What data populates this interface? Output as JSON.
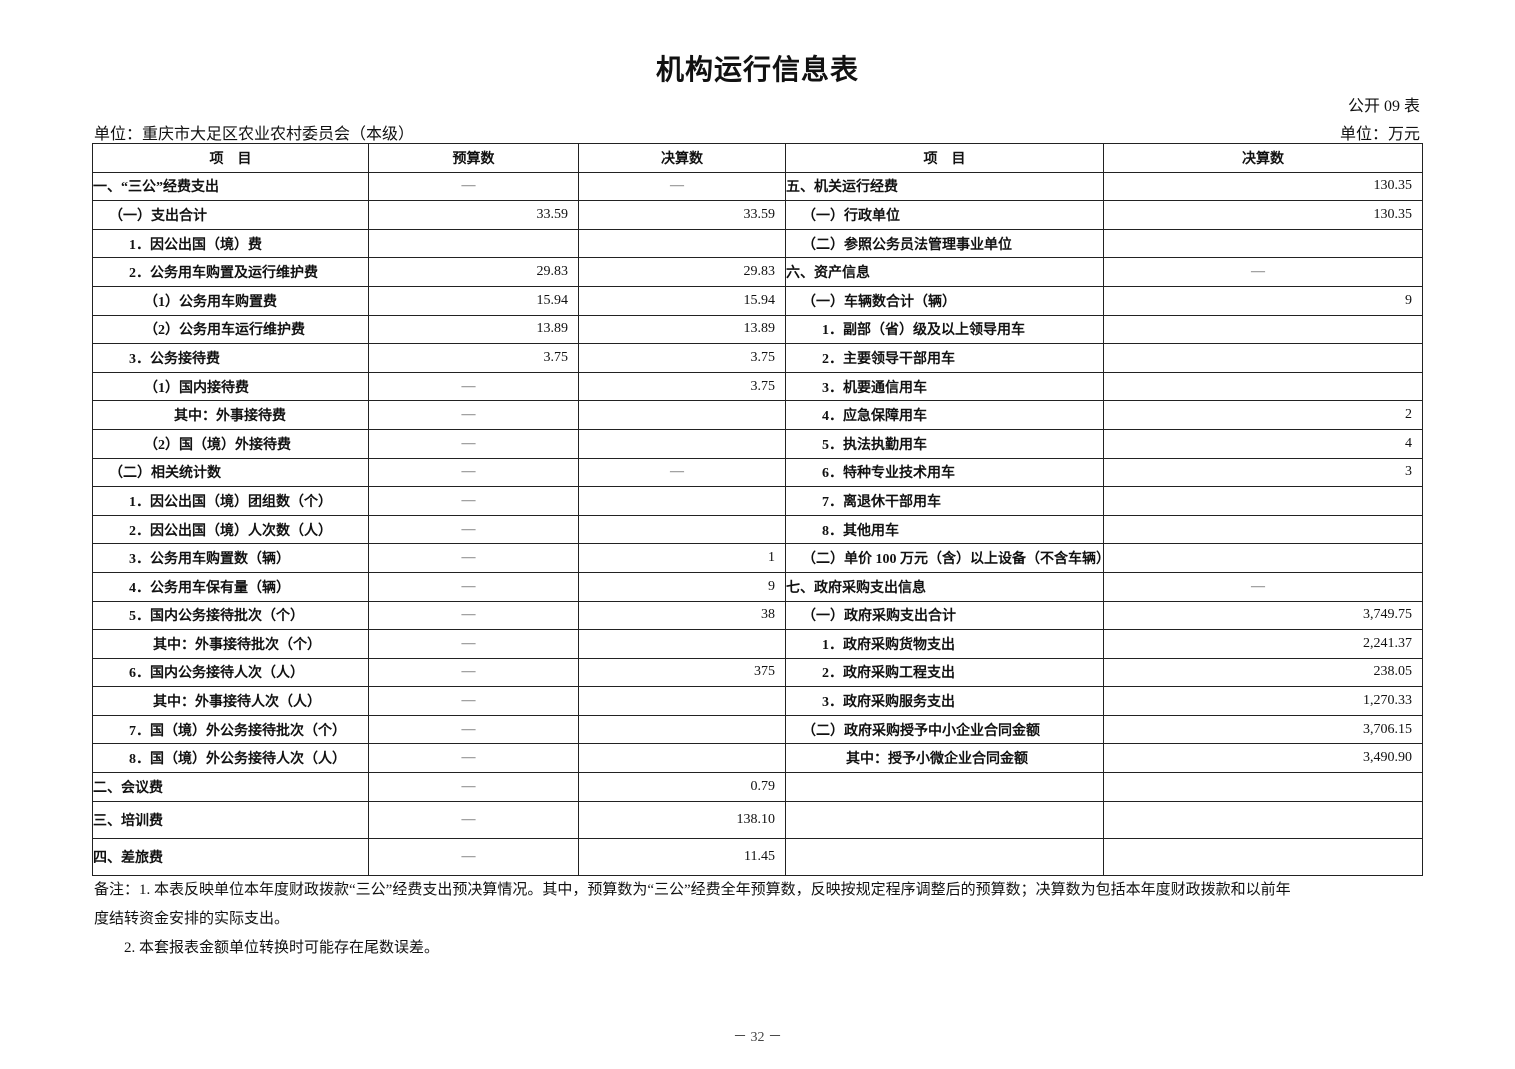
{
  "title": "机构运行信息表",
  "form_no": "公开 09 表",
  "unit_left": "单位：重庆市大足区农业农村委员会（本级）",
  "unit_right": "单位：万元",
  "headers": {
    "item": "项　目",
    "budget": "预算数",
    "final": "决算数",
    "item2": "项　目",
    "final2": "决算数"
  },
  "rows": [
    {
      "l": "一、“三公”经费支出",
      "li": 0,
      "b": "—",
      "f": "—",
      "r": "五、机关运行经费",
      "ri": 0,
      "v": "130.35"
    },
    {
      "l": "（一）支出合计",
      "li": 1,
      "b": "33.59",
      "f": "33.59",
      "r": "（一）行政单位",
      "ri": 1,
      "v": "130.35"
    },
    {
      "l": "1．因公出国（境）费",
      "li": 2,
      "b": "",
      "f": "",
      "r": "（二）参照公务员法管理事业单位",
      "ri": 1,
      "v": ""
    },
    {
      "l": "2．公务用车购置及运行维护费",
      "li": 2,
      "b": "29.83",
      "f": "29.83",
      "r": "六、资产信息",
      "ri": 0,
      "v": "—"
    },
    {
      "l": "（1）公务用车购置费",
      "li": 3,
      "b": "15.94",
      "f": "15.94",
      "r": "（一）车辆数合计（辆）",
      "ri": 1,
      "v": "9"
    },
    {
      "l": "（2）公务用车运行维护费",
      "li": 3,
      "b": "13.89",
      "f": "13.89",
      "r": "1．副部（省）级及以上领导用车",
      "ri": 2,
      "v": ""
    },
    {
      "l": "3．公务接待费",
      "li": 2,
      "b": "3.75",
      "f": "3.75",
      "r": "2．主要领导干部用车",
      "ri": 2,
      "v": ""
    },
    {
      "l": "（1）国内接待费",
      "li": 3,
      "b": "—",
      "f": "3.75",
      "r": "3．机要通信用车",
      "ri": 2,
      "v": ""
    },
    {
      "l": "其中：外事接待费",
      "li": 4,
      "b": "—",
      "f": "",
      "r": "4．应急保障用车",
      "ri": 2,
      "v": "2"
    },
    {
      "l": "（2）国（境）外接待费",
      "li": 3,
      "b": "—",
      "f": "",
      "r": "5．执法执勤用车",
      "ri": 2,
      "v": "4"
    },
    {
      "l": "（二）相关统计数",
      "li": 1,
      "b": "—",
      "f": "—",
      "r": "6．特种专业技术用车",
      "ri": 2,
      "v": "3"
    },
    {
      "l": "1．因公出国（境）团组数（个）",
      "li": 2,
      "b": "—",
      "f": "",
      "r": "7．离退休干部用车",
      "ri": 2,
      "v": ""
    },
    {
      "l": "2．因公出国（境）人次数（人）",
      "li": 2,
      "b": "—",
      "f": "",
      "r": "8．其他用车",
      "ri": 2,
      "v": ""
    },
    {
      "l": "3．公务用车购置数（辆）",
      "li": 2,
      "b": "—",
      "f": "1",
      "r": "（二）单价 100 万元（含）以上设备（不含车辆）",
      "ri": 1,
      "v": ""
    },
    {
      "l": "4．公务用车保有量（辆）",
      "li": 2,
      "b": "—",
      "f": "9",
      "r": "七、政府采购支出信息",
      "ri": 0,
      "v": "—"
    },
    {
      "l": "5．国内公务接待批次（个）",
      "li": 2,
      "b": "—",
      "f": "38",
      "r": "（一）政府采购支出合计",
      "ri": 1,
      "v": "3,749.75"
    },
    {
      "l": "其中：外事接待批次（个）",
      "li": 5,
      "b": "—",
      "f": "",
      "r": "1．政府采购货物支出",
      "ri": 2,
      "v": "2,241.37"
    },
    {
      "l": "6．国内公务接待人次（人）",
      "li": 2,
      "b": "—",
      "f": "375",
      "r": "2．政府采购工程支出",
      "ri": 2,
      "v": "238.05"
    },
    {
      "l": "其中：外事接待人次（人）",
      "li": 5,
      "b": "—",
      "f": "",
      "r": "3．政府采购服务支出",
      "ri": 2,
      "v": "1,270.33"
    },
    {
      "l": "7．国（境）外公务接待批次（个）",
      "li": 2,
      "b": "—",
      "f": "",
      "r": "（二）政府采购授予中小企业合同金额",
      "ri": 1,
      "v": "3,706.15"
    },
    {
      "l": "8．国（境）外公务接待人次（人）",
      "li": 2,
      "b": "—",
      "f": "",
      "r": "其中：授予小微企业合同金额",
      "ri": 6,
      "v": "3,490.90"
    },
    {
      "l": "二、会议费",
      "li": 0,
      "b": "—",
      "f": "0.79",
      "r": "",
      "ri": 0,
      "v": ""
    },
    {
      "l": "三、培训费",
      "li": 0,
      "b": "—",
      "f": "138.10",
      "r": "",
      "ri": 0,
      "v": ""
    },
    {
      "l": "四、差旅费",
      "li": 0,
      "b": "—",
      "f": "11.45",
      "r": "",
      "ri": 0,
      "v": ""
    }
  ],
  "notes": [
    "备注：1. 本表反映单位本年度财政拨款“三公”经费支出预决算情况。其中，预算数为“三公”经费全年预算数，反映按规定程序调整后的预算数；决算数为包括本年度财政拨款和以前年",
    "度结转资金安排的实际支出。",
    "　　2. 本套报表金额单位转换时可能存在尾数误差。"
  ],
  "page_number": "－ 32 －"
}
